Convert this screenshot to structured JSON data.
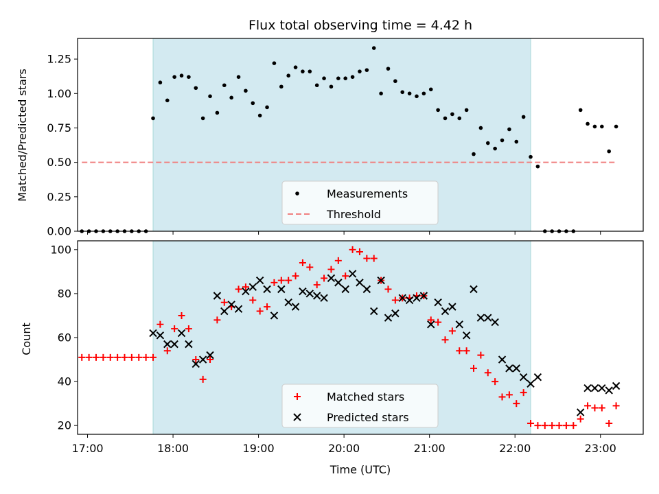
{
  "chart_data": [
    {
      "type": "scatter",
      "title": "Flux total observing time = 4.42 h",
      "xlabel": "",
      "ylabel": "Matched/Predicted stars",
      "xlim": [
        "16:53",
        "23:30"
      ],
      "ylim": [
        0,
        1.4
      ],
      "yticks": [
        "0.00",
        "0.25",
        "0.50",
        "0.75",
        "1.00",
        "1.25"
      ],
      "shaded_interval": [
        "17:46",
        "22:11"
      ],
      "shade_color": "#d3eaf1",
      "legend_position": "bottom-center",
      "legend": [
        "Measurements",
        "Threshold"
      ],
      "series": [
        {
          "name": "Measurements",
          "marker": "dot",
          "color": "#000000",
          "x": [
            "16:56",
            "17:01",
            "17:06",
            "17:11",
            "17:16",
            "17:21",
            "17:26",
            "17:31",
            "17:36",
            "17:41",
            "17:46",
            "17:51",
            "17:56",
            "18:01",
            "18:06",
            "18:11",
            "18:16",
            "18:21",
            "18:26",
            "18:31",
            "18:36",
            "18:41",
            "18:46",
            "18:51",
            "18:56",
            "19:01",
            "19:06",
            "19:11",
            "19:16",
            "19:21",
            "19:26",
            "19:31",
            "19:36",
            "19:41",
            "19:46",
            "19:51",
            "19:56",
            "20:01",
            "20:06",
            "20:11",
            "20:16",
            "20:21",
            "20:26",
            "20:31",
            "20:36",
            "20:41",
            "20:46",
            "20:51",
            "20:56",
            "21:01",
            "21:06",
            "21:11",
            "21:16",
            "21:21",
            "21:26",
            "21:31",
            "21:36",
            "21:41",
            "21:46",
            "21:51",
            "21:56",
            "22:01",
            "22:06",
            "22:11",
            "22:16",
            "22:21",
            "22:26",
            "22:31",
            "22:36",
            "22:41",
            "22:46",
            "22:51",
            "22:56",
            "23:01",
            "23:06",
            "23:11"
          ],
          "y": [
            0,
            0,
            0,
            0,
            0,
            0,
            0,
            0,
            0,
            0,
            0.82,
            1.08,
            0.95,
            1.12,
            1.13,
            1.12,
            1.04,
            0.82,
            0.98,
            0.86,
            1.06,
            0.97,
            1.12,
            1.02,
            0.93,
            0.84,
            0.9,
            1.22,
            1.05,
            1.13,
            1.19,
            1.16,
            1.16,
            1.06,
            1.11,
            1.05,
            1.11,
            1.11,
            1.12,
            1.16,
            1.17,
            1.33,
            1.0,
            1.18,
            1.09,
            1.01,
            1.0,
            0.98,
            1.0,
            1.03,
            0.88,
            0.82,
            0.85,
            0.82,
            0.88,
            0.56,
            0.75,
            0.64,
            0.6,
            0.66,
            0.74,
            0.65,
            0.83,
            0.54,
            0.47,
            0,
            0,
            0,
            0,
            0,
            0.88,
            0.78,
            0.76,
            0.76,
            0.58,
            0.76
          ]
        },
        {
          "name": "Threshold",
          "style": "dashed",
          "color": "#f08080",
          "x": [
            "16:56",
            "23:11"
          ],
          "y": [
            0.5,
            0.5
          ]
        }
      ]
    },
    {
      "type": "scatter",
      "title": "",
      "xlabel": "Time (UTC)",
      "ylabel": "Count",
      "xlim": [
        "16:53",
        "23:30"
      ],
      "ylim": [
        16,
        104
      ],
      "yticks": [
        "20",
        "40",
        "60",
        "80",
        "100"
      ],
      "xticks": [
        "17:00",
        "18:00",
        "19:00",
        "20:00",
        "21:00",
        "22:00",
        "23:00"
      ],
      "shaded_interval": [
        "17:46",
        "22:11"
      ],
      "shade_color": "#d3eaf1",
      "legend_position": "bottom-center",
      "legend": [
        "Matched stars",
        "Predicted stars"
      ],
      "series": [
        {
          "name": "Matched stars",
          "marker": "plus",
          "color": "#ff0000",
          "x": [
            "16:56",
            "17:01",
            "17:06",
            "17:11",
            "17:16",
            "17:21",
            "17:26",
            "17:31",
            "17:36",
            "17:41",
            "17:46",
            "17:51",
            "17:56",
            "18:01",
            "18:06",
            "18:11",
            "18:16",
            "18:21",
            "18:26",
            "18:31",
            "18:36",
            "18:41",
            "18:46",
            "18:51",
            "18:56",
            "19:01",
            "19:06",
            "19:11",
            "19:16",
            "19:21",
            "19:26",
            "19:31",
            "19:36",
            "19:41",
            "19:46",
            "19:51",
            "19:56",
            "20:01",
            "20:06",
            "20:11",
            "20:16",
            "20:21",
            "20:26",
            "20:31",
            "20:36",
            "20:41",
            "20:46",
            "20:51",
            "20:56",
            "21:01",
            "21:06",
            "21:11",
            "21:16",
            "21:21",
            "21:26",
            "21:31",
            "21:36",
            "21:41",
            "21:46",
            "21:51",
            "21:56",
            "22:01",
            "22:06",
            "22:11",
            "22:16",
            "22:21",
            "22:26",
            "22:31",
            "22:36",
            "22:41",
            "22:46",
            "22:51",
            "22:56",
            "23:01",
            "23:06",
            "23:11"
          ],
          "y": [
            51,
            51,
            51,
            51,
            51,
            51,
            51,
            51,
            51,
            51,
            51,
            66,
            54,
            64,
            70,
            64,
            50,
            41,
            50,
            68,
            76,
            74,
            82,
            83,
            77,
            72,
            74,
            85,
            86,
            86,
            88,
            94,
            92,
            84,
            87,
            91,
            95,
            88,
            100,
            99,
            96,
            96,
            86,
            82,
            77,
            78,
            78,
            79,
            79,
            68,
            67,
            59,
            63,
            54,
            54,
            46,
            52,
            44,
            40,
            33,
            34,
            30,
            35,
            21,
            20,
            20,
            20,
            20,
            20,
            20,
            23,
            29,
            28,
            28,
            21,
            29
          ]
        },
        {
          "name": "Predicted stars",
          "marker": "x",
          "color": "#000000",
          "x": [
            "17:46",
            "17:51",
            "17:56",
            "18:01",
            "18:06",
            "18:11",
            "18:16",
            "18:21",
            "18:26",
            "18:31",
            "18:36",
            "18:41",
            "18:46",
            "18:51",
            "18:56",
            "19:01",
            "19:06",
            "19:11",
            "19:16",
            "19:21",
            "19:26",
            "19:31",
            "19:36",
            "19:41",
            "19:46",
            "19:51",
            "19:56",
            "20:01",
            "20:06",
            "20:11",
            "20:16",
            "20:21",
            "20:26",
            "20:31",
            "20:36",
            "20:41",
            "20:46",
            "20:51",
            "20:56",
            "21:01",
            "21:06",
            "21:11",
            "21:16",
            "21:21",
            "21:26",
            "21:31",
            "21:36",
            "21:41",
            "21:46",
            "21:51",
            "21:56",
            "22:01",
            "22:06",
            "22:11",
            "22:16",
            "22:46",
            "22:51",
            "22:56",
            "23:01",
            "23:06",
            "23:11"
          ],
          "y": [
            62,
            61,
            57,
            57,
            62,
            57,
            48,
            50,
            52,
            79,
            72,
            75,
            73,
            81,
            83,
            86,
            82,
            70,
            82,
            76,
            74,
            81,
            80,
            79,
            78,
            87,
            85,
            82,
            89,
            85,
            82,
            72,
            86,
            69,
            71,
            78,
            77,
            78,
            79,
            66,
            76,
            72,
            74,
            66,
            61,
            82,
            69,
            69,
            67,
            50,
            46,
            46,
            42,
            39,
            42,
            26,
            37,
            37,
            37,
            36,
            38
          ]
        }
      ]
    }
  ]
}
